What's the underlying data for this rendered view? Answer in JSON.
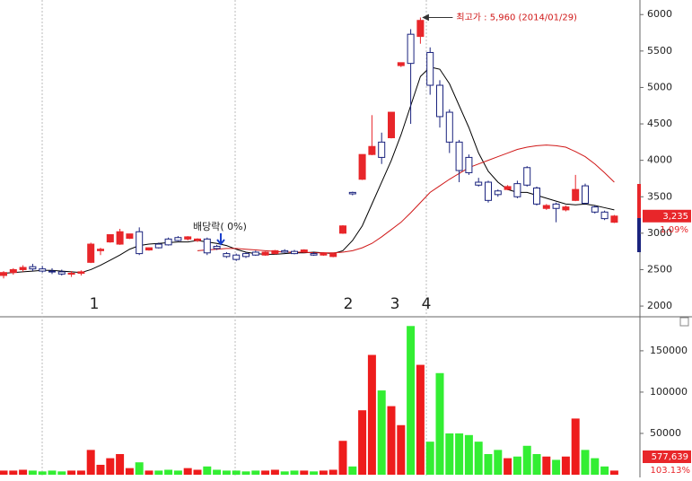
{
  "chart_data": [
    {
      "type": "candlestick",
      "up_color": "#e8262a",
      "down_color": "#1a237e",
      "open": [
        2420,
        2460,
        2500,
        2540,
        2510,
        2480,
        2470,
        2440,
        2450,
        2600,
        2760,
        2880,
        2850,
        2930,
        3020,
        2770,
        2850,
        2920,
        2940,
        2920,
        2900,
        2920,
        2820,
        2720,
        2700,
        2720,
        2740,
        2700,
        2720,
        2760,
        2750,
        2740,
        2720,
        2700,
        2680,
        3000,
        3560,
        3740,
        4080,
        4250,
        4310,
        5300,
        5730,
        5700,
        5480,
        5030,
        4660,
        4250,
        4040,
        3700,
        3700,
        3580,
        3600,
        3680,
        3900,
        3620,
        3340,
        3400,
        3320,
        3450,
        3650,
        3360,
        3290,
        3150
      ],
      "high": [
        2480,
        2520,
        2560,
        2580,
        2550,
        2520,
        2500,
        2480,
        2490,
        2870,
        2800,
        2980,
        3060,
        2990,
        3080,
        2800,
        2870,
        2940,
        2960,
        2960,
        2930,
        2940,
        2840,
        2740,
        2720,
        2740,
        2760,
        2750,
        2770,
        2780,
        2770,
        2780,
        2740,
        2740,
        2730,
        3110,
        3570,
        4080,
        4620,
        4380,
        4660,
        5340,
        5800,
        5960,
        5550,
        5100,
        4700,
        4280,
        4080,
        3760,
        3720,
        3600,
        3660,
        3720,
        3920,
        3640,
        3400,
        3420,
        3380,
        3800,
        3680,
        3380,
        3310,
        3250
      ],
      "low": [
        2380,
        2430,
        2470,
        2480,
        2460,
        2440,
        2420,
        2400,
        2420,
        2590,
        2700,
        2870,
        2840,
        2920,
        2700,
        2760,
        2790,
        2830,
        2890,
        2900,
        2880,
        2700,
        2770,
        2660,
        2620,
        2660,
        2690,
        2690,
        2710,
        2730,
        2710,
        2730,
        2690,
        2690,
        2670,
        2990,
        3520,
        3730,
        4070,
        3950,
        4300,
        5280,
        4500,
        5600,
        4900,
        4450,
        4100,
        3700,
        3800,
        3640,
        3420,
        3500,
        3590,
        3480,
        3640,
        3380,
        3320,
        3150,
        3300,
        3440,
        3400,
        3270,
        3180,
        3140
      ],
      "close": [
        2460,
        2500,
        2530,
        2510,
        2480,
        2470,
        2440,
        2450,
        2470,
        2850,
        2780,
        2980,
        3020,
        2990,
        2720,
        2800,
        2800,
        2840,
        2900,
        2950,
        2920,
        2730,
        2790,
        2680,
        2640,
        2680,
        2700,
        2740,
        2760,
        2740,
        2720,
        2770,
        2700,
        2730,
        2720,
        3100,
        3540,
        4080,
        4190,
        4040,
        4660,
        5340,
        5330,
        5920,
        5030,
        4600,
        4250,
        3860,
        3830,
        3660,
        3450,
        3530,
        3640,
        3500,
        3660,
        3400,
        3380,
        3340,
        3360,
        3600,
        3410,
        3290,
        3200,
        3235
      ],
      "series": [
        {
          "color": "#000000",
          "values": [
            2450,
            2460,
            2470,
            2480,
            2490,
            2490,
            2480,
            2470,
            2460,
            2500,
            2560,
            2630,
            2700,
            2780,
            2830,
            2850,
            2860,
            2870,
            2880,
            2880,
            2900,
            2880,
            2860,
            2830,
            2780,
            2740,
            2720,
            2710,
            2710,
            2720,
            2730,
            2730,
            2740,
            2730,
            2720,
            2760,
            2900,
            3100,
            3400,
            3700,
            4000,
            4350,
            4750,
            5150,
            5280,
            5250,
            5050,
            4750,
            4450,
            4100,
            3850,
            3700,
            3600,
            3560,
            3560,
            3520,
            3480,
            3440,
            3400,
            3390,
            3400,
            3380,
            3350,
            3320
          ]
        },
        {
          "color": "#d01818",
          "values": [
            null,
            null,
            null,
            null,
            null,
            null,
            null,
            null,
            null,
            null,
            null,
            null,
            null,
            null,
            null,
            null,
            null,
            null,
            null,
            null,
            2760,
            2770,
            2780,
            2790,
            2790,
            2780,
            2770,
            2760,
            2750,
            2740,
            2740,
            2740,
            2730,
            2730,
            2730,
            2740,
            2760,
            2800,
            2860,
            2950,
            3050,
            3150,
            3280,
            3420,
            3560,
            3650,
            3740,
            3820,
            3900,
            3950,
            4000,
            4050,
            4100,
            4150,
            4180,
            4200,
            4210,
            4200,
            4180,
            4120,
            4050,
            3950,
            3830,
            3700
          ]
        }
      ],
      "ylim": [
        1890,
        6200
      ],
      "yticks": [
        2000,
        2500,
        3000,
        3500,
        4000,
        4500,
        5000,
        5500,
        6000
      ],
      "high_annotation": "최고가 : 5,960 (2014/01/29)",
      "dividend_annotation": "배당락( 0%)",
      "event_labels": [
        "1",
        "2",
        "3",
        "4"
      ],
      "last_price": {
        "value": 3235,
        "label": "3,235"
      },
      "change_label": "1.09%"
    },
    {
      "type": "volume",
      "up_color": "#ee1c1c",
      "down_color": "#33ee33",
      "values": [
        5000,
        5000,
        6000,
        5000,
        4000,
        5000,
        4000,
        5000,
        5000,
        30000,
        12000,
        20000,
        25000,
        8000,
        15000,
        5000,
        5000,
        6000,
        5000,
        8000,
        6000,
        10000,
        6000,
        5000,
        5000,
        4000,
        5000,
        5000,
        6000,
        4000,
        5000,
        5000,
        4000,
        5000,
        6000,
        41000,
        10000,
        78000,
        145000,
        102000,
        83000,
        60000,
        180000,
        133000,
        40000,
        123000,
        50000,
        50000,
        48000,
        40000,
        25000,
        30000,
        20000,
        22000,
        35000,
        25000,
        22000,
        18000,
        22000,
        68000,
        30000,
        20000,
        10000,
        5000
      ],
      "ylim": [
        0,
        189000
      ],
      "yticks": [
        50000,
        100000,
        150000
      ],
      "last_volume": {
        "value": 577639,
        "label": "577,639"
      },
      "ratio_label": "103.13%"
    }
  ]
}
